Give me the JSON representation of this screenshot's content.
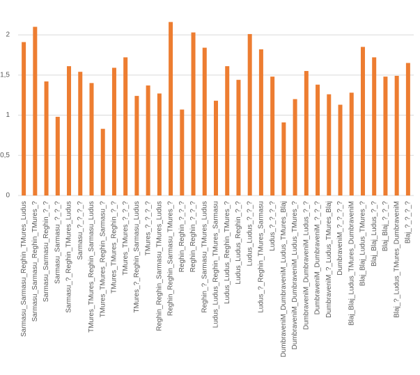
{
  "chart_data": {
    "type": "bar",
    "color": "#ed7d31",
    "grid": true,
    "categories": [
      "Sarmasu_Sarmasu_Reghin_TMures_Ludus",
      "Sarmasu_Sarmasu_Reghin_TMures_?",
      "Sarmasu_Sarmasu_Reghin_?_?",
      "Sarmasu_Sarmasu_?_?_?",
      "Sarmasu_?_Reghin_TMures_Ludus",
      "Sarmasu_?_?_?_?",
      "TMures_TMures_Reghin_Sarmasu_Ludus",
      "TMures_TMures_Reghin_Sarmasu_?",
      "TMures_TMures_Reghin_?_?",
      "TMures_TMures_?_?_?",
      "TMures_?_Reghin_Sarmasu_Ludus",
      "TMures_?_?_?_?",
      "Reghin_Reghin_Sarmasu_TMures_Ludus",
      "Reghin_Reghin_Sarmasu_TMures_?",
      "Reghin_Reghin_?_?_?",
      "Reghin_Reghin_?_?_?",
      "Reghin_?_Sarmasu_TMures_Ludus",
      "Ludus_Ludus_Reghin_TMures_Sarmasu",
      "Ludus_Ludus_Reghin_TMures_?",
      "Ludus_Ludus_Reghin_?_?",
      "Ludus_Ludus_?_?_?",
      "Ludus_?_Reghin_TMures_Sarmasu",
      "Ludus_?_?_?_?",
      "DumbraveniM_DumbraveniM_Ludus_TMures_Blaj",
      "DumbraveniM_DumbraveniM_Ludus_TMures_?",
      "DumbraveniM_DumbraveniM_Ludus_?_?",
      "DumbraveniM_DumbraveniM_?_?_?",
      "DumbraveniM_?_Ludus_TMures_Blaj",
      "DumbraveniM_?_?_?_?",
      "Blaj_Blaj_Ludus_TMures_DumbraveniM",
      "Blaj_Blaj_Ludus_TMures_?",
      "Blaj_Blaj_Ludus_?_?",
      "Blaj_Blaj_?_?_?",
      "Blaj_?_Ludus_TMures_DumbraveniM",
      "Blaj_?_?_?_?"
    ],
    "values": [
      1.91,
      2.1,
      1.42,
      0.98,
      1.61,
      1.54,
      1.4,
      0.83,
      1.59,
      1.72,
      1.24,
      1.37,
      1.27,
      2.16,
      1.07,
      2.03,
      1.84,
      1.18,
      1.61,
      1.44,
      2.01,
      1.82,
      1.48,
      0.91,
      1.2,
      1.55,
      1.38,
      1.26,
      1.13,
      1.28,
      1.85,
      1.72,
      1.48,
      1.49,
      1.65
    ],
    "ylim": [
      0,
      2.2
    ],
    "yticks": [
      0,
      {
        "value": 0.5,
        "label": "0,5"
      },
      1,
      {
        "value": 1.5,
        "label": "1,5"
      },
      2
    ]
  }
}
